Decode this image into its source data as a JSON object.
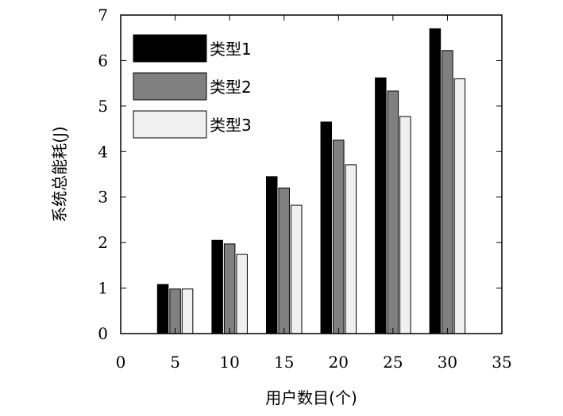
{
  "chart_data": {
    "type": "bar",
    "title": "",
    "xlabel": "用户数目(个)",
    "ylabel": "系统总能耗(J)",
    "x": [
      5,
      10,
      15,
      20,
      25,
      30
    ],
    "xlim": [
      0,
      35
    ],
    "ylim": [
      0,
      7
    ],
    "xticks": [
      0,
      5,
      10,
      15,
      20,
      25,
      30,
      35
    ],
    "yticks": [
      0,
      1,
      2,
      3,
      4,
      5,
      6,
      7
    ],
    "grid": false,
    "legend_position": "top-left",
    "series": [
      {
        "name": "类型1",
        "color": "#000000",
        "values": [
          1.08,
          2.05,
          3.45,
          4.65,
          5.62,
          6.7
        ]
      },
      {
        "name": "类型2",
        "color": "#808080",
        "values": [
          0.98,
          1.97,
          3.2,
          4.25,
          5.33,
          6.22
        ]
      },
      {
        "name": "类型3",
        "color": "#f0f0f0",
        "values": [
          0.98,
          1.74,
          2.82,
          3.71,
          4.77,
          5.6
        ]
      }
    ]
  }
}
